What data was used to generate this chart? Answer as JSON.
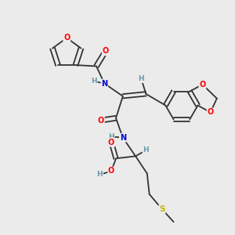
{
  "bg_color": "#ebebeb",
  "atom_colors": {
    "O": "#ff0000",
    "N": "#0000cc",
    "S": "#bbbb00",
    "C": "#333333",
    "H": "#6699aa"
  },
  "bond_color": "#333333",
  "lw": 1.3
}
